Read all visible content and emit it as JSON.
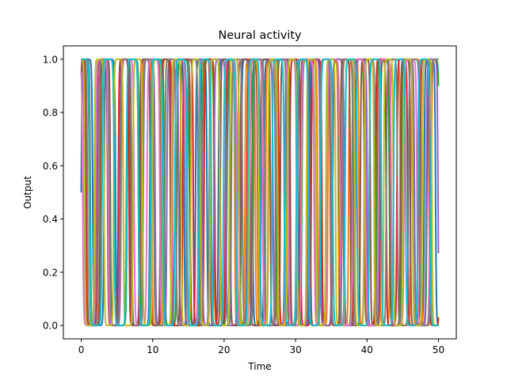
{
  "chart_data": {
    "type": "line",
    "title": "Neural activity",
    "xlabel": "Time",
    "ylabel": "Output",
    "xlim": [
      -2.5,
      52.5
    ],
    "ylim": [
      -0.05,
      1.05
    ],
    "x_ticks": [
      0,
      10,
      20,
      30,
      40,
      50
    ],
    "x_tick_labels": [
      "0",
      "10",
      "20",
      "30",
      "40",
      "50"
    ],
    "y_ticks": [
      0.0,
      0.2,
      0.4,
      0.6,
      0.8,
      1.0
    ],
    "y_tick_labels": [
      "0.0",
      "0.2",
      "0.4",
      "0.6",
      "0.8",
      "1.0"
    ],
    "grid": false,
    "legend": "none",
    "x_range": [
      0,
      50
    ],
    "series_colors": [
      "#1f77b4",
      "#ff7f0e",
      "#2ca02c",
      "#d62728",
      "#9467bd",
      "#8c564b",
      "#e377c2",
      "#7f7f7f",
      "#bcbd22",
      "#17becf"
    ],
    "series": [
      {
        "period": 3.2,
        "phase": 0.0
      },
      {
        "period": 2.9,
        "phase": 0.6
      },
      {
        "period": 3.5,
        "phase": 1.1
      },
      {
        "period": 3.0,
        "phase": 1.7
      },
      {
        "period": 3.3,
        "phase": 2.3
      },
      {
        "period": 2.8,
        "phase": 0.3
      },
      {
        "period": 3.6,
        "phase": 2.8
      },
      {
        "period": 3.1,
        "phase": 1.4
      },
      {
        "period": 2.7,
        "phase": 2.0
      },
      {
        "period": 3.4,
        "phase": 0.9
      }
    ]
  }
}
